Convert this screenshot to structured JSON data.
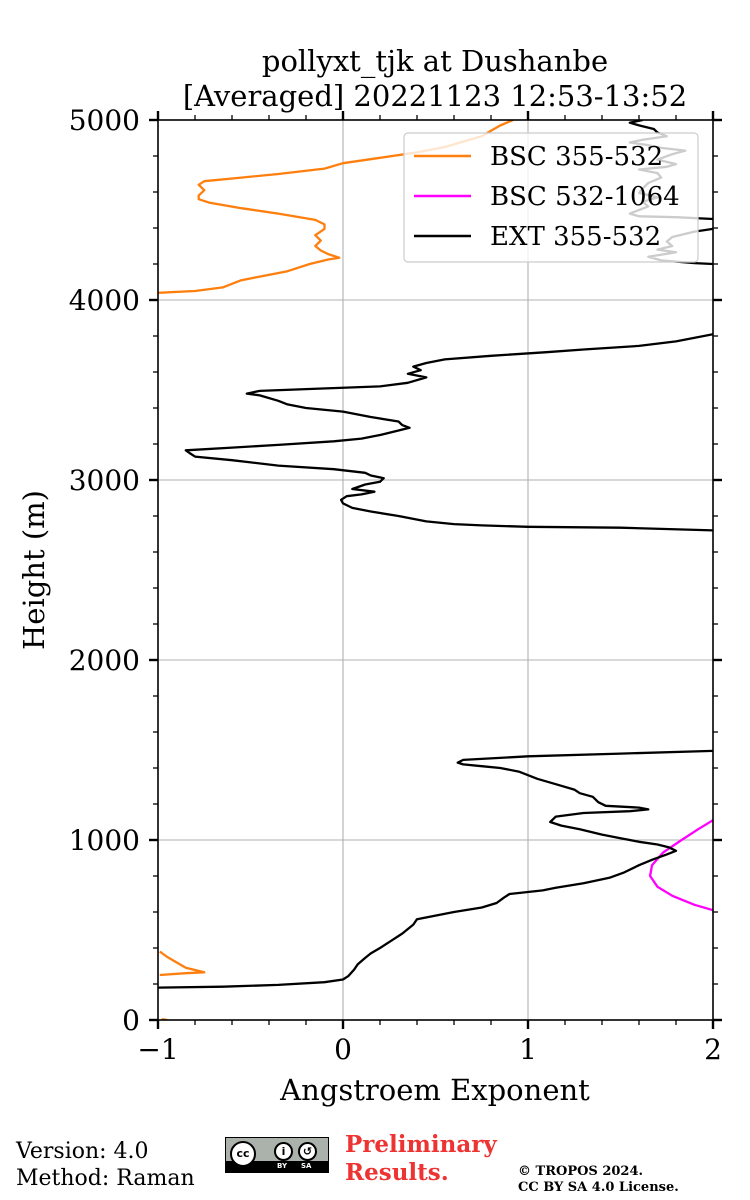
{
  "chart_data": {
    "type": "line",
    "title_line1": "pollyxt_tjk at Dushanbe",
    "title_line2": "[Averaged] 20221123 12:53-13:52",
    "xlabel": "Angstroem Exponent",
    "ylabel": "Height (m)",
    "xlim": [
      -1,
      2
    ],
    "ylim": [
      0,
      5000
    ],
    "xticks": [
      -1,
      0,
      1,
      2
    ],
    "xtick_labels": [
      "−1",
      "0",
      "1",
      "2"
    ],
    "yticks": [
      0,
      1000,
      2000,
      3000,
      4000,
      5000
    ],
    "ytick_labels": [
      "0",
      "1000",
      "2000",
      "3000",
      "4000",
      "5000"
    ],
    "grid": true,
    "legend_position": "top-right",
    "series": [
      {
        "name": "BSC 355-532",
        "color": "#ff7f0e",
        "segments": [
          [
            [
              -0.95,
              0
            ],
            [
              -0.98,
              5
            ]
          ],
          [
            [
              -0.99,
              250
            ],
            [
              -0.85,
              260
            ],
            [
              -0.75,
              265
            ],
            [
              -0.85,
              290
            ],
            [
              -0.9,
              320
            ],
            [
              -0.95,
              350
            ],
            [
              -0.99,
              380
            ]
          ],
          [
            [
              -1.0,
              4040
            ],
            [
              -0.8,
              4050
            ],
            [
              -0.65,
              4070
            ],
            [
              -0.6,
              4090
            ],
            [
              -0.55,
              4110
            ],
            [
              -0.45,
              4130
            ],
            [
              -0.3,
              4160
            ],
            [
              -0.18,
              4200
            ],
            [
              -0.08,
              4225
            ],
            [
              -0.02,
              4235
            ],
            [
              -0.08,
              4255
            ],
            [
              -0.12,
              4275
            ],
            [
              -0.15,
              4300
            ],
            [
              -0.12,
              4330
            ],
            [
              -0.15,
              4360
            ],
            [
              -0.1,
              4395
            ],
            [
              -0.1,
              4420
            ],
            [
              -0.15,
              4445
            ],
            [
              -0.35,
              4480
            ],
            [
              -0.55,
              4510
            ],
            [
              -0.72,
              4540
            ],
            [
              -0.78,
              4560
            ],
            [
              -0.78,
              4580
            ],
            [
              -0.75,
              4610
            ],
            [
              -0.78,
              4640
            ],
            [
              -0.75,
              4660
            ],
            [
              -0.55,
              4680
            ],
            [
              -0.35,
              4700
            ],
            [
              -0.1,
              4730
            ],
            [
              0.0,
              4760
            ],
            [
              0.2,
              4790
            ],
            [
              0.4,
              4820
            ],
            [
              0.55,
              4850
            ],
            [
              0.65,
              4880
            ],
            [
              0.75,
              4910
            ],
            [
              0.8,
              4940
            ],
            [
              0.85,
              4970
            ],
            [
              0.92,
              5000
            ]
          ]
        ]
      },
      {
        "name": "BSC 532-1064",
        "color": "#ff00ff",
        "segments": [
          [
            [
              2.0,
              1110
            ],
            [
              1.92,
              1060
            ],
            [
              1.83,
              1000
            ],
            [
              1.73,
              930
            ],
            [
              1.67,
              860
            ],
            [
              1.66,
              800
            ],
            [
              1.7,
              740
            ],
            [
              1.78,
              690
            ],
            [
              1.9,
              640
            ],
            [
              2.0,
              610
            ]
          ]
        ]
      },
      {
        "name": "EXT 355-532",
        "color": "#000000",
        "segments": [
          [
            [
              -1.0,
              180
            ],
            [
              -0.65,
              185
            ],
            [
              -0.35,
              195
            ],
            [
              -0.1,
              210
            ],
            [
              0.0,
              225
            ],
            [
              0.03,
              245
            ],
            [
              0.06,
              280
            ],
            [
              0.08,
              310
            ],
            [
              0.12,
              345
            ],
            [
              0.15,
              370
            ],
            [
              0.2,
              400
            ],
            [
              0.26,
              440
            ],
            [
              0.32,
              480
            ],
            [
              0.38,
              530
            ],
            [
              0.4,
              560
            ],
            [
              0.5,
              580
            ],
            [
              0.6,
              600
            ],
            [
              0.75,
              625
            ],
            [
              0.83,
              650
            ],
            [
              0.87,
              680
            ],
            [
              0.9,
              700
            ],
            [
              1.08,
              720
            ],
            [
              1.15,
              735
            ],
            [
              1.3,
              760
            ],
            [
              1.44,
              790
            ],
            [
              1.52,
              820
            ],
            [
              1.6,
              860
            ],
            [
              1.67,
              890
            ],
            [
              1.75,
              920
            ],
            [
              1.8,
              940
            ],
            [
              1.76,
              960
            ],
            [
              1.7,
              975
            ],
            [
              1.6,
              990
            ],
            [
              1.5,
              1010
            ],
            [
              1.4,
              1030
            ],
            [
              1.28,
              1060
            ],
            [
              1.18,
              1080
            ],
            [
              1.12,
              1100
            ],
            [
              1.15,
              1130
            ],
            [
              1.3,
              1150
            ],
            [
              1.55,
              1160
            ],
            [
              1.65,
              1170
            ],
            [
              1.6,
              1180
            ],
            [
              1.42,
              1190
            ],
            [
              1.38,
              1210
            ],
            [
              1.35,
              1240
            ],
            [
              1.28,
              1260
            ],
            [
              1.25,
              1280
            ],
            [
              1.15,
              1310
            ],
            [
              1.05,
              1340
            ],
            [
              0.95,
              1380
            ],
            [
              0.85,
              1400
            ],
            [
              0.75,
              1410
            ],
            [
              0.65,
              1420
            ],
            [
              0.62,
              1430
            ],
            [
              0.65,
              1445
            ],
            [
              1.0,
              1465
            ],
            [
              1.5,
              1480
            ],
            [
              2.0,
              1495
            ]
          ],
          [
            [
              2.0,
              2720
            ],
            [
              1.5,
              2735
            ],
            [
              1.0,
              2740
            ],
            [
              0.75,
              2748
            ],
            [
              0.6,
              2755
            ],
            [
              0.45,
              2770
            ],
            [
              0.3,
              2800
            ],
            [
              0.15,
              2825
            ],
            [
              0.05,
              2845
            ],
            [
              0.0,
              2870
            ],
            [
              -0.01,
              2890
            ],
            [
              0.02,
              2910
            ],
            [
              0.1,
              2920
            ],
            [
              0.17,
              2935
            ],
            [
              0.05,
              2950
            ],
            [
              0.12,
              2975
            ],
            [
              0.2,
              2990
            ],
            [
              0.22,
              3010
            ],
            [
              0.15,
              3025
            ],
            [
              0.12,
              3040
            ],
            [
              -0.05,
              3060
            ],
            [
              -0.35,
              3080
            ],
            [
              -0.6,
              3110
            ],
            [
              -0.8,
              3130
            ],
            [
              -0.83,
              3150
            ],
            [
              -0.85,
              3165
            ],
            [
              -0.6,
              3180
            ],
            [
              -0.35,
              3195
            ],
            [
              -0.05,
              3215
            ],
            [
              0.1,
              3230
            ],
            [
              0.2,
              3250
            ],
            [
              0.3,
              3275
            ],
            [
              0.36,
              3290
            ],
            [
              0.32,
              3305
            ],
            [
              0.3,
              3325
            ],
            [
              0.15,
              3350
            ],
            [
              0.0,
              3380
            ],
            [
              -0.2,
              3400
            ],
            [
              -0.3,
              3420
            ],
            [
              -0.35,
              3440
            ],
            [
              -0.45,
              3470
            ],
            [
              -0.52,
              3480
            ],
            [
              -0.45,
              3495
            ],
            [
              -0.2,
              3505
            ],
            [
              0.2,
              3520
            ],
            [
              0.35,
              3540
            ],
            [
              0.45,
              3570
            ],
            [
              0.35,
              3590
            ],
            [
              0.42,
              3610
            ],
            [
              0.38,
              3630
            ],
            [
              0.45,
              3650
            ],
            [
              0.55,
              3670
            ],
            [
              0.8,
              3690
            ],
            [
              1.1,
              3710
            ],
            [
              1.3,
              3725
            ],
            [
              1.6,
              3745
            ],
            [
              1.8,
              3770
            ],
            [
              2.0,
              3810
            ]
          ],
          [
            [
              2.0,
              4200
            ],
            [
              1.9,
              4205
            ],
            [
              1.72,
              4220
            ],
            [
              1.65,
              4240
            ],
            [
              1.8,
              4265
            ],
            [
              1.7,
              4280
            ],
            [
              1.78,
              4300
            ],
            [
              1.75,
              4325
            ],
            [
              1.78,
              4350
            ],
            [
              1.9,
              4380
            ],
            [
              2.0,
              4395
            ]
          ],
          [
            [
              2.0,
              4450
            ],
            [
              1.8,
              4460
            ],
            [
              1.6,
              4465
            ],
            [
              1.55,
              4480
            ],
            [
              1.6,
              4500
            ],
            [
              1.65,
              4520
            ],
            [
              1.62,
              4545
            ],
            [
              1.7,
              4570
            ],
            [
              1.6,
              4595
            ],
            [
              1.62,
              4620
            ],
            [
              1.65,
              4650
            ],
            [
              1.72,
              4680
            ],
            [
              1.7,
              4705
            ],
            [
              1.6,
              4725
            ],
            [
              1.75,
              4740
            ],
            [
              1.8,
              4755
            ],
            [
              1.7,
              4780
            ],
            [
              1.78,
              4810
            ],
            [
              1.85,
              4830
            ],
            [
              1.72,
              4845
            ],
            [
              1.65,
              4860
            ],
            [
              1.55,
              4875
            ],
            [
              1.62,
              4890
            ],
            [
              1.75,
              4910
            ],
            [
              1.7,
              4930
            ],
            [
              1.68,
              4950
            ],
            [
              1.6,
              4970
            ],
            [
              1.55,
              4985
            ],
            [
              1.62,
              5000
            ]
          ]
        ]
      }
    ]
  },
  "footer": {
    "version": "Version: 4.0",
    "method": "Method: Raman",
    "preliminary_line1": "Preliminary",
    "preliminary_line2": "Results.",
    "copyright_line1": "© TROPOS 2024.",
    "copyright_line2": "CC BY SA 4.0 License.",
    "license_badge": {
      "cc": "cc",
      "by": "BY",
      "sa": "SA"
    }
  }
}
